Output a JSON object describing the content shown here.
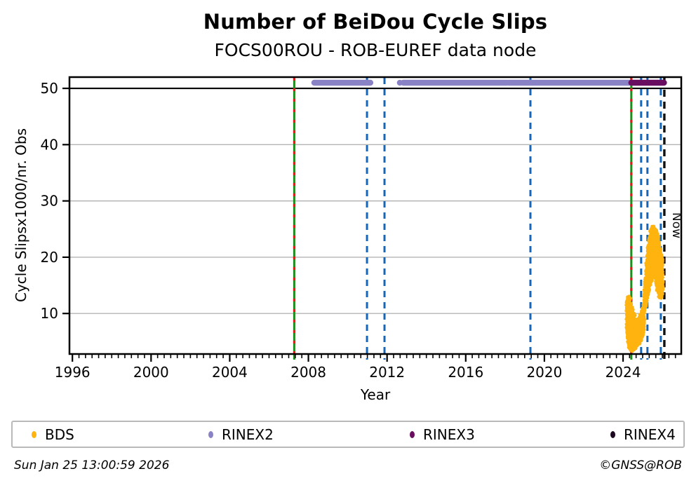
{
  "header": {
    "title": "Number of BeiDou Cycle Slips",
    "subtitle": "FOCS00ROU - ROB-EUREF data node"
  },
  "footer": {
    "timestamp": "Sun Jan 25 13:00:59 2026",
    "credit": "©GNSS@ROB"
  },
  "legend": {
    "items": [
      {
        "label": "BDS",
        "color": "#FFB30E"
      },
      {
        "label": "RINEX2",
        "color": "#8983C6"
      },
      {
        "label": "RINEX3",
        "color": "#690D60"
      },
      {
        "label": "RINEX4",
        "color": "#1C0720"
      }
    ]
  },
  "chart_data": {
    "type": "scatter",
    "title": "Number of BeiDou Cycle Slips",
    "subtitle": "FOCS00ROU - ROB-EUREF data node",
    "xlabel": "Year",
    "ylabel": "Cycle Slipsx1000/nr. Obs",
    "xlim": [
      1995.85,
      2026.96
    ],
    "ylim": [
      2.8,
      52.0
    ],
    "x_ticks": [
      1996,
      2000,
      2004,
      2008,
      2012,
      2016,
      2020,
      2024
    ],
    "y_ticks": [
      10,
      20,
      30,
      40,
      50
    ],
    "minor_tick_step_years": 0.3333,
    "grid": "horizontal-only",
    "grid_color": "#b4b4b4",
    "threshold_line": {
      "value": 50,
      "color": "#000000"
    },
    "now_label": {
      "text": "Now",
      "year": 2026.1
    },
    "line_colors": {
      "milestone_green": "#1E8C1E",
      "milestone_red": "#D81B1B",
      "event_blue": "#1766B8",
      "now_black": "#111111"
    },
    "event_lines": [
      {
        "year": 2007.28,
        "style": "milestone"
      },
      {
        "year": 2010.98,
        "style": "blue"
      },
      {
        "year": 2011.87,
        "style": "blue"
      },
      {
        "year": 2019.29,
        "style": "blue"
      },
      {
        "year": 2024.42,
        "style": "milestone"
      },
      {
        "year": 2024.92,
        "style": "blue"
      },
      {
        "year": 2025.24,
        "style": "blue"
      },
      {
        "year": 2025.92,
        "style": "blue"
      },
      {
        "year": 2026.1,
        "style": "now"
      }
    ],
    "series": [
      {
        "name": "BDS",
        "color": "#FFB30E",
        "type": "scatter-cloud",
        "clusters": [
          {
            "n_points": 1400,
            "envelope": [
              [
                2024.18,
                7.5,
                12.0
              ],
              [
                2024.26,
                4.2,
                13.3
              ],
              [
                2024.36,
                3.3,
                12.6
              ],
              [
                2024.48,
                3.2,
                11.2
              ],
              [
                2024.6,
                3.6,
                9.6
              ],
              [
                2024.72,
                4.2,
                8.8
              ],
              [
                2024.84,
                4.6,
                9.4
              ],
              [
                2024.96,
                5.4,
                10.8
              ],
              [
                2025.08,
                7.0,
                12.2
              ]
            ]
          },
          {
            "n_points": 1800,
            "envelope": [
              [
                2025.08,
                10.6,
                13.8
              ],
              [
                2025.16,
                11.4,
                17.6
              ],
              [
                2025.24,
                12.8,
                21.0
              ],
              [
                2025.33,
                14.2,
                23.6
              ],
              [
                2025.42,
                15.4,
                25.0
              ],
              [
                2025.52,
                16.4,
                25.8
              ],
              [
                2025.6,
                16.6,
                25.2
              ],
              [
                2025.68,
                15.0,
                24.8
              ],
              [
                2025.77,
                13.6,
                24.0
              ],
              [
                2025.85,
                12.6,
                22.5
              ],
              [
                2025.94,
                12.8,
                21.0
              ],
              [
                2026.02,
                13.6,
                19.0
              ]
            ]
          }
        ]
      },
      {
        "name": "RINEX2",
        "color": "#8983C6",
        "type": "band",
        "value": 51,
        "segments": [
          [
            2008.3,
            2011.15
          ],
          [
            2012.83,
            2018.1
          ],
          [
            2018.17,
            2024.39
          ]
        ],
        "isolated_points": [
          2012.65
        ]
      },
      {
        "name": "RINEX3",
        "color": "#690D60",
        "type": "band",
        "value": 51,
        "segments": [
          [
            2024.42,
            2026.08
          ]
        ],
        "isolated_points": []
      },
      {
        "name": "RINEX4",
        "color": "#1C0720",
        "type": "band",
        "value": 51,
        "segments": [],
        "isolated_points": []
      }
    ]
  }
}
